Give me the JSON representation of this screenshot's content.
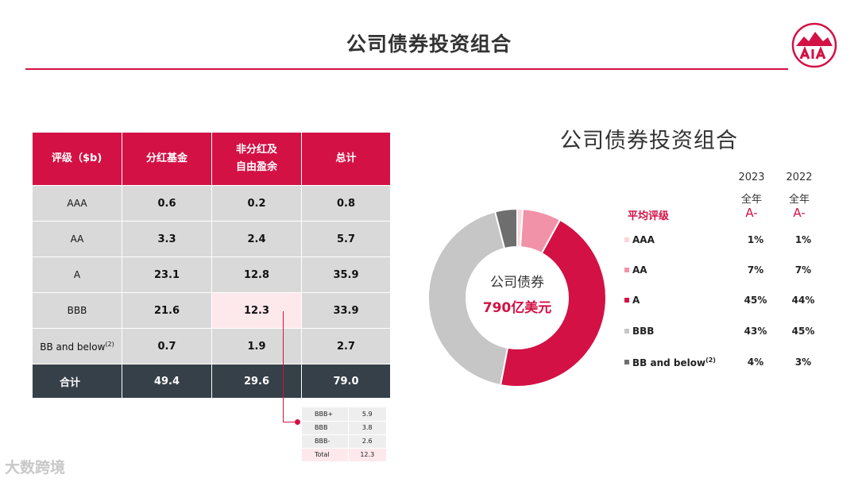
{
  "page": {
    "title": "公司债券投资组合"
  },
  "table": {
    "headers": [
      "评级（$b)",
      "分红基金",
      "非分红及\n自由盈余",
      "总计"
    ],
    "rows": [
      {
        "label": "AAA",
        "label_sup": "",
        "c1": "0.6",
        "c2": "0.2",
        "c3": "0.8"
      },
      {
        "label": "AA",
        "label_sup": "",
        "c1": "3.3",
        "c2": "2.4",
        "c3": "5.7"
      },
      {
        "label": "A",
        "label_sup": "",
        "c1": "23.1",
        "c2": "12.8",
        "c3": "35.9"
      },
      {
        "label": "BBB",
        "label_sup": "",
        "c1": "21.6",
        "c2": "12.3",
        "c3": "33.9"
      },
      {
        "label": "BB and below",
        "label_sup": "(2)",
        "c1": "0.7",
        "c2": "1.9",
        "c3": "2.7"
      }
    ],
    "total": {
      "label": "合计",
      "c1": "49.4",
      "c2": "29.6",
      "c3": "79.0"
    }
  },
  "bbb_breakdown": [
    {
      "label": "BBB+",
      "value": "5.9"
    },
    {
      "label": "BBB",
      "value": "3.8"
    },
    {
      "label": "BBB-",
      "value": "2.6"
    },
    {
      "label": "Total",
      "value": "12.3"
    }
  ],
  "chart_data": {
    "type": "pie",
    "title": "公司债券投资组合",
    "center_label": "公司债券",
    "center_value": "790亿美元",
    "categories": [
      "AAA",
      "AA",
      "A",
      "BBB",
      "BB and below"
    ],
    "values": [
      1,
      7,
      45,
      43,
      4
    ],
    "colors": [
      "#fbd5dd",
      "#f192a8",
      "#d31145",
      "#c6c6c6",
      "#6e6e6e"
    ]
  },
  "legend": {
    "years": [
      "2023",
      "2022"
    ],
    "period": [
      "全年",
      "全年"
    ],
    "avg_label": "平均评级",
    "avg_values": [
      "A-",
      "A-"
    ],
    "rows": [
      {
        "name": "AAA",
        "sup": "",
        "v2023": "1%",
        "v2022": "1%",
        "color": "#fbd5dd"
      },
      {
        "name": "AA",
        "sup": "",
        "v2023": "7%",
        "v2022": "7%",
        "color": "#f192a8"
      },
      {
        "name": "A",
        "sup": "",
        "v2023": "45%",
        "v2022": "44%",
        "color": "#d31145"
      },
      {
        "name": "BBB",
        "sup": "",
        "v2023": "43%",
        "v2022": "45%",
        "color": "#c6c6c6"
      },
      {
        "name": "BB and below",
        "sup": "(2)",
        "v2023": "4%",
        "v2022": "3%",
        "color": "#6e6e6e"
      }
    ]
  },
  "watermark": "大数跨境"
}
